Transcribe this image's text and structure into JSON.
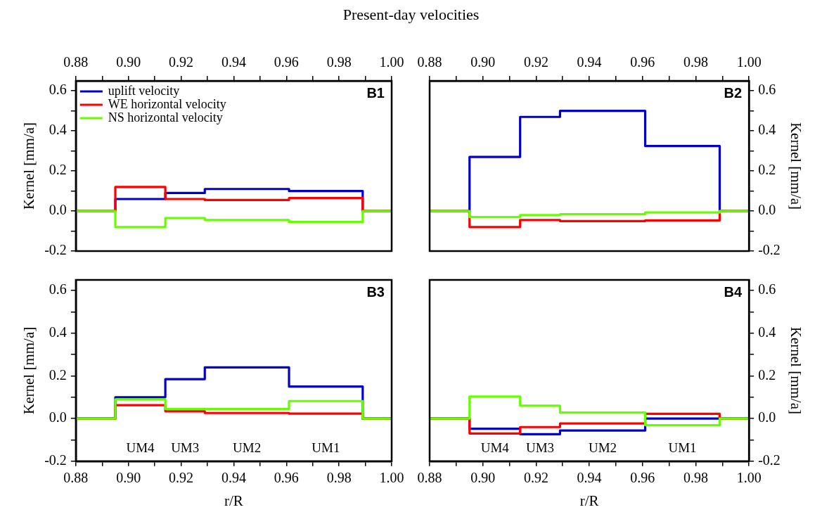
{
  "chart_data": [
    {
      "type": "step",
      "title": "B1",
      "subtitle": "Present-day velocities",
      "ylabel": "Kernel [mm/a]",
      "legend": "top left",
      "x": [
        0.88,
        0.895,
        0.914,
        0.929,
        0.961,
        0.989,
        1.0
      ],
      "xlim": [
        0.88,
        1.0
      ],
      "xticks": [
        0.88,
        {
          "value": 0.89,
          "label": null
        },
        {
          "value": 0.9,
          "label": "0.90"
        },
        {
          "value": 0.91,
          "label": null
        },
        0.92,
        {
          "value": 0.93,
          "label": null
        },
        0.94,
        {
          "value": 0.95,
          "label": null
        },
        0.96,
        {
          "value": 0.97,
          "label": null
        },
        0.98,
        {
          "value": 0.99,
          "label": null
        },
        {
          "value": 1.0,
          "label": "1.00"
        }
      ],
      "ylim": [
        -0.2,
        0.65
      ],
      "yticks": [
        -0.2,
        {
          "value": -0.1,
          "label": null
        },
        {
          "value": 0,
          "label": "0.0"
        },
        {
          "value": 0.1,
          "label": null
        },
        0.2,
        {
          "value": 0.3,
          "label": null
        },
        0.4,
        {
          "value": 0.5,
          "label": null
        },
        0.6
      ],
      "series": [
        {
          "name": "uplift velocity",
          "color": "#0000cc",
          "values": [
            0,
            0.06,
            0.09,
            0.11,
            0.1,
            0,
            0
          ]
        },
        {
          "name": "WE horizontal velocity",
          "color": "#ff0000",
          "values": [
            0,
            0.12,
            0.06,
            0.055,
            0.065,
            0,
            0
          ]
        },
        {
          "name": "NS horizontal velocity",
          "color": "#66ff00",
          "values": [
            0,
            -0.08,
            -0.035,
            -0.045,
            -0.055,
            0,
            0
          ]
        }
      ]
    },
    {
      "type": "step",
      "title": "B2",
      "ylabel": "Kernel [mm/a]",
      "x": [
        0.88,
        0.895,
        0.914,
        0.929,
        0.961,
        0.989,
        1.0
      ],
      "xlim": [
        0.88,
        1.0
      ],
      "xticks": [
        0.88,
        {
          "value": 0.89,
          "label": null
        },
        {
          "value": 0.9,
          "label": "0.90"
        },
        {
          "value": 0.91,
          "label": null
        },
        0.92,
        {
          "value": 0.93,
          "label": null
        },
        0.94,
        {
          "value": 0.95,
          "label": null
        },
        0.96,
        {
          "value": 0.97,
          "label": null
        },
        0.98,
        {
          "value": 0.99,
          "label": null
        },
        {
          "value": 1.0,
          "label": "1.00"
        }
      ],
      "ylim": [
        -0.2,
        0.65
      ],
      "yticks": [
        -0.2,
        {
          "value": -0.1,
          "label": null
        },
        {
          "value": 0,
          "label": "0.0"
        },
        {
          "value": 0.1,
          "label": null
        },
        0.2,
        {
          "value": 0.3,
          "label": null
        },
        0.4,
        {
          "value": 0.5,
          "label": null
        },
        0.6
      ],
      "series": [
        {
          "color": "#0000cc",
          "values": [
            0,
            0.27,
            0.47,
            0.5,
            0.325,
            0,
            0
          ]
        },
        {
          "color": "#ff0000",
          "values": [
            0,
            -0.08,
            -0.045,
            -0.05,
            -0.047,
            0,
            0
          ]
        },
        {
          "color": "#66ff00",
          "values": [
            0,
            -0.03,
            -0.02,
            -0.016,
            -0.007,
            0,
            0
          ]
        }
      ]
    },
    {
      "type": "step",
      "title": "B3",
      "xlabel": "r/R",
      "ylabel": "Kernel [mm/a]",
      "annotations": [
        "UM4",
        "UM3",
        "UM2",
        "UM1"
      ],
      "x": [
        0.88,
        0.895,
        0.914,
        0.929,
        0.961,
        0.989,
        1.0
      ],
      "xlim": [
        0.88,
        1.0
      ],
      "xticks": [
        0.88,
        {
          "value": 0.89,
          "label": null
        },
        {
          "value": 0.9,
          "label": "0.90"
        },
        {
          "value": 0.91,
          "label": null
        },
        0.92,
        {
          "value": 0.93,
          "label": null
        },
        0.94,
        {
          "value": 0.95,
          "label": null
        },
        0.96,
        {
          "value": 0.97,
          "label": null
        },
        0.98,
        {
          "value": 0.99,
          "label": null
        },
        {
          "value": 1.0,
          "label": "1.00"
        }
      ],
      "ylim": [
        -0.2,
        0.65
      ],
      "yticks": [
        -0.2,
        {
          "value": -0.1,
          "label": null
        },
        {
          "value": 0,
          "label": "0.0"
        },
        {
          "value": 0.1,
          "label": null
        },
        0.2,
        {
          "value": 0.3,
          "label": null
        },
        0.4,
        {
          "value": 0.5,
          "label": null
        },
        0.6
      ],
      "series": [
        {
          "color": "#0000cc",
          "values": [
            0,
            0.1,
            0.185,
            0.24,
            0.15,
            0,
            0
          ]
        },
        {
          "color": "#ff0000",
          "values": [
            0,
            0.063,
            0.034,
            0.026,
            0.023,
            0,
            0
          ]
        },
        {
          "color": "#66ff00",
          "values": [
            0,
            0.09,
            0.045,
            0.045,
            0.082,
            0,
            0
          ]
        }
      ]
    },
    {
      "type": "step",
      "title": "B4",
      "xlabel": "r/R",
      "ylabel": "Kernel [mm/a]",
      "annotations": [
        "UM4",
        "UM3",
        "UM2",
        "UM1"
      ],
      "x": [
        0.88,
        0.895,
        0.914,
        0.929,
        0.961,
        0.989,
        1.0
      ],
      "xlim": [
        0.88,
        1.0
      ],
      "xticks": [
        0.88,
        {
          "value": 0.89,
          "label": null
        },
        {
          "value": 0.9,
          "label": "0.90"
        },
        {
          "value": 0.91,
          "label": null
        },
        0.92,
        {
          "value": 0.93,
          "label": null
        },
        0.94,
        {
          "value": 0.95,
          "label": null
        },
        0.96,
        {
          "value": 0.97,
          "label": null
        },
        0.98,
        {
          "value": 0.99,
          "label": null
        },
        {
          "value": 1.0,
          "label": "1.00"
        }
      ],
      "ylim": [
        -0.2,
        0.65
      ],
      "yticks": [
        -0.2,
        {
          "value": -0.1,
          "label": null
        },
        {
          "value": 0,
          "label": "0.0"
        },
        {
          "value": 0.1,
          "label": null
        },
        0.2,
        {
          "value": 0.3,
          "label": null
        },
        0.4,
        {
          "value": 0.5,
          "label": null
        },
        0.6
      ],
      "series": [
        {
          "color": "#0000cc",
          "values": [
            0,
            -0.048,
            -0.073,
            -0.056,
            0,
            0,
            0
          ]
        },
        {
          "color": "#ff0000",
          "values": [
            0,
            -0.07,
            -0.04,
            -0.023,
            0.022,
            0,
            0
          ]
        },
        {
          "color": "#66ff00",
          "values": [
            0,
            0.103,
            0.06,
            0.028,
            -0.031,
            0,
            0
          ]
        }
      ]
    }
  ]
}
